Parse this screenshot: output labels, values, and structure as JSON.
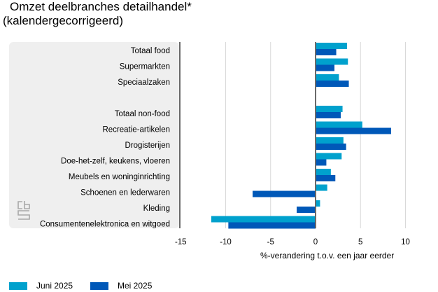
{
  "chart_data": {
    "type": "bar",
    "orientation": "horizontal",
    "title": "Omzet deelbranches detailhandel*",
    "subtitle": "(kalendergecorrigeerd)",
    "xlabel": "%-verandering t.o.v. een jaar eerder",
    "ylabel": "",
    "xlim": [
      -15,
      15
    ],
    "xticks": [
      "-15",
      "-10",
      "-5",
      "0",
      "5",
      "10"
    ],
    "grid": true,
    "legend_position": "bottom-left",
    "categories": [
      "Totaal food",
      "Supermarkten",
      "Speciaalzaken",
      "",
      "Totaal non-food",
      "Recreatie-artikelen",
      "Drogisterijen",
      "Doe-het-zelf, keukens, vloeren",
      "Meubels en woninginrichting",
      "Schoenen en lederwaren",
      "Kleding",
      "Consumentenelektronica en witgoed"
    ],
    "series": [
      {
        "name": "Juni 2025",
        "color": "#00a1cd",
        "values": [
          3.5,
          3.6,
          2.6,
          null,
          3.0,
          5.2,
          3.1,
          2.9,
          1.7,
          1.3,
          0.5,
          -11.6
        ]
      },
      {
        "name": "Mei 2025",
        "color": "#0058b8",
        "values": [
          2.3,
          2.1,
          3.7,
          null,
          2.8,
          8.4,
          3.4,
          1.2,
          2.2,
          -7.0,
          -2.1,
          -9.7
        ]
      }
    ]
  },
  "logo": "cbs-logo"
}
